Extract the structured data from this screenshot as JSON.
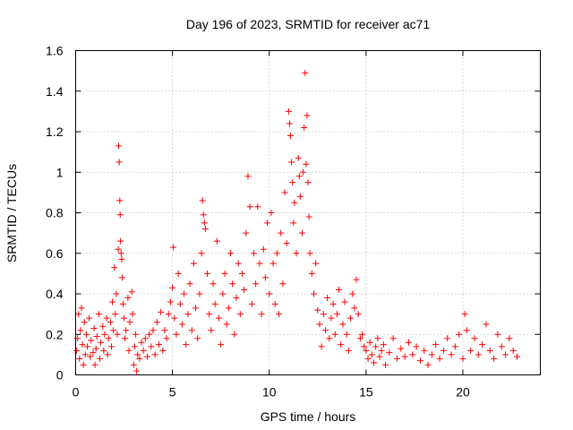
{
  "chart_data": {
    "type": "scatter",
    "title": "Day 196 of 2023, SRMTID for receiver ac71",
    "xlabel": "GPS time / hours",
    "ylabel": "SRMTID / TECUs",
    "xlim": [
      0,
      24
    ],
    "ylim": [
      0,
      1.6
    ],
    "xticks": [
      0,
      5,
      10,
      15,
      20
    ],
    "xtick_labels": [
      "0",
      "5",
      "10",
      "15",
      "20"
    ],
    "yticks": [
      0,
      0.2,
      0.4,
      0.6,
      0.8,
      1.0,
      1.2,
      1.4,
      1.6
    ],
    "ytick_labels": [
      "0",
      "0.2",
      "0.4",
      "0.6",
      "0.8",
      "1",
      "1.2",
      "1.4",
      "1.6"
    ],
    "grid": true,
    "marker": "+",
    "color": "#ff0000",
    "series": [
      {
        "name": "SRMTID",
        "points": [
          [
            0.05,
            0.12
          ],
          [
            0.1,
            0.18
          ],
          [
            0.15,
            0.3
          ],
          [
            0.2,
            0.08
          ],
          [
            0.25,
            0.22
          ],
          [
            0.3,
            0.33
          ],
          [
            0.35,
            0.15
          ],
          [
            0.4,
            0.05
          ],
          [
            0.45,
            0.26
          ],
          [
            0.5,
            0.1
          ],
          [
            0.55,
            0.2
          ],
          [
            0.6,
            0.14
          ],
          [
            0.7,
            0.28
          ],
          [
            0.75,
            0.09
          ],
          [
            0.8,
            0.17
          ],
          [
            0.9,
            0.11
          ],
          [
            0.95,
            0.23
          ],
          [
            1.0,
            0.05
          ],
          [
            1.05,
            0.13
          ],
          [
            1.1,
            0.19
          ],
          [
            1.2,
            0.3
          ],
          [
            1.25,
            0.08
          ],
          [
            1.3,
            0.16
          ],
          [
            1.4,
            0.24
          ],
          [
            1.45,
            0.12
          ],
          [
            1.5,
            0.2
          ],
          [
            1.6,
            0.28
          ],
          [
            1.65,
            0.1
          ],
          [
            1.7,
            0.18
          ],
          [
            1.8,
            0.26
          ],
          [
            1.85,
            0.14
          ],
          [
            1.9,
            0.36
          ],
          [
            1.95,
            0.22
          ],
          [
            2.0,
            0.53
          ],
          [
            2.05,
            0.3
          ],
          [
            2.1,
            0.4
          ],
          [
            2.15,
            0.2
          ],
          [
            2.2,
            0.62
          ],
          [
            2.22,
            1.13
          ],
          [
            2.25,
            1.05
          ],
          [
            2.28,
            0.86
          ],
          [
            2.3,
            0.79
          ],
          [
            2.32,
            0.66
          ],
          [
            2.35,
            0.6
          ],
          [
            2.38,
            0.57
          ],
          [
            2.4,
            0.48
          ],
          [
            2.45,
            0.35
          ],
          [
            2.5,
            0.28
          ],
          [
            2.55,
            0.18
          ],
          [
            2.6,
            0.22
          ],
          [
            2.7,
            0.38
          ],
          [
            2.75,
            0.12
          ],
          [
            2.8,
            0.26
          ],
          [
            2.9,
            0.41
          ],
          [
            2.95,
            0.3
          ],
          [
            3.0,
            0.05
          ],
          [
            3.05,
            0.14
          ],
          [
            3.1,
            0.2
          ],
          [
            3.15,
            0.02
          ],
          [
            3.2,
            0.1
          ],
          [
            3.3,
            0.08
          ],
          [
            3.4,
            0.16
          ],
          [
            3.5,
            0.12
          ],
          [
            3.6,
            0.18
          ],
          [
            3.7,
            0.09
          ],
          [
            3.8,
            0.2
          ],
          [
            3.9,
            0.14
          ],
          [
            4.0,
            0.22
          ],
          [
            4.1,
            0.1
          ],
          [
            4.2,
            0.26
          ],
          [
            4.3,
            0.15
          ],
          [
            4.4,
            0.31
          ],
          [
            4.5,
            0.12
          ],
          [
            4.6,
            0.22
          ],
          [
            4.7,
            0.18
          ],
          [
            4.8,
            0.3
          ],
          [
            4.9,
            0.36
          ],
          [
            5.0,
            0.43
          ],
          [
            5.05,
            0.63
          ],
          [
            5.1,
            0.28
          ],
          [
            5.2,
            0.2
          ],
          [
            5.3,
            0.5
          ],
          [
            5.4,
            0.35
          ],
          [
            5.5,
            0.25
          ],
          [
            5.6,
            0.4
          ],
          [
            5.7,
            0.15
          ],
          [
            5.8,
            0.3
          ],
          [
            5.9,
            0.45
          ],
          [
            6.0,
            0.22
          ],
          [
            6.1,
            0.55
          ],
          [
            6.2,
            0.33
          ],
          [
            6.3,
            0.18
          ],
          [
            6.4,
            0.4
          ],
          [
            6.5,
            0.6
          ],
          [
            6.55,
            0.86
          ],
          [
            6.6,
            0.79
          ],
          [
            6.65,
            0.75
          ],
          [
            6.7,
            0.72
          ],
          [
            6.8,
            0.5
          ],
          [
            6.9,
            0.3
          ],
          [
            7.0,
            0.22
          ],
          [
            7.1,
            0.45
          ],
          [
            7.2,
            0.35
          ],
          [
            7.3,
            0.66
          ],
          [
            7.4,
            0.28
          ],
          [
            7.5,
            0.15
          ],
          [
            7.6,
            0.4
          ],
          [
            7.7,
            0.5
          ],
          [
            7.8,
            0.25
          ],
          [
            7.9,
            0.33
          ],
          [
            8.0,
            0.6
          ],
          [
            8.1,
            0.45
          ],
          [
            8.2,
            0.2
          ],
          [
            8.3,
            0.38
          ],
          [
            8.4,
            0.55
          ],
          [
            8.5,
            0.3
          ],
          [
            8.6,
            0.5
          ],
          [
            8.7,
            0.42
          ],
          [
            8.8,
            0.7
          ],
          [
            8.9,
            0.98
          ],
          [
            9.0,
            0.83
          ],
          [
            9.1,
            0.35
          ],
          [
            9.2,
            0.6
          ],
          [
            9.3,
            0.45
          ],
          [
            9.4,
            0.83
          ],
          [
            9.5,
            0.55
          ],
          [
            9.6,
            0.3
          ],
          [
            9.7,
            0.62
          ],
          [
            9.8,
            0.48
          ],
          [
            9.9,
            0.75
          ],
          [
            10.0,
            0.4
          ],
          [
            10.1,
            0.8
          ],
          [
            10.2,
            0.55
          ],
          [
            10.3,
            0.35
          ],
          [
            10.4,
            0.6
          ],
          [
            10.5,
            0.3
          ],
          [
            10.6,
            0.7
          ],
          [
            10.7,
            0.45
          ],
          [
            10.8,
            0.9
          ],
          [
            10.9,
            0.65
          ],
          [
            11.0,
            1.3
          ],
          [
            11.05,
            1.24
          ],
          [
            11.1,
            1.18
          ],
          [
            11.15,
            1.05
          ],
          [
            11.2,
            0.95
          ],
          [
            11.25,
            0.75
          ],
          [
            11.3,
            0.85
          ],
          [
            11.4,
            0.6
          ],
          [
            11.5,
            1.07
          ],
          [
            11.55,
            0.98
          ],
          [
            11.6,
            0.88
          ],
          [
            11.7,
            0.7
          ],
          [
            11.75,
            1.0
          ],
          [
            11.8,
            1.22
          ],
          [
            11.85,
            1.49
          ],
          [
            11.9,
            1.04
          ],
          [
            11.95,
            1.28
          ],
          [
            12.0,
            0.95
          ],
          [
            12.05,
            0.78
          ],
          [
            12.1,
            0.6
          ],
          [
            12.2,
            0.5
          ],
          [
            12.3,
            0.4
          ],
          [
            12.4,
            0.55
          ],
          [
            12.5,
            0.32
          ],
          [
            12.6,
            0.25
          ],
          [
            12.7,
            0.14
          ],
          [
            12.8,
            0.3
          ],
          [
            12.9,
            0.22
          ],
          [
            13.0,
            0.38
          ],
          [
            13.1,
            0.18
          ],
          [
            13.2,
            0.28
          ],
          [
            13.3,
            0.35
          ],
          [
            13.4,
            0.2
          ],
          [
            13.5,
            0.3
          ],
          [
            13.6,
            0.42
          ],
          [
            13.7,
            0.15
          ],
          [
            13.8,
            0.25
          ],
          [
            13.9,
            0.36
          ],
          [
            14.0,
            0.2
          ],
          [
            14.1,
            0.12
          ],
          [
            14.2,
            0.28
          ],
          [
            14.3,
            0.4
          ],
          [
            14.4,
            0.33
          ],
          [
            14.5,
            0.47
          ],
          [
            14.6,
            0.3
          ],
          [
            14.7,
            0.18
          ],
          [
            14.8,
            0.2
          ],
          [
            14.9,
            0.14
          ],
          [
            15.0,
            0.12
          ],
          [
            15.1,
            0.08
          ],
          [
            15.2,
            0.16
          ],
          [
            15.3,
            0.1
          ],
          [
            15.4,
            0.06
          ],
          [
            15.5,
            0.14
          ],
          [
            15.6,
            0.18
          ],
          [
            15.7,
            0.09
          ],
          [
            15.8,
            0.12
          ],
          [
            15.9,
            0.15
          ],
          [
            16.0,
            0.05
          ],
          [
            16.2,
            0.11
          ],
          [
            16.4,
            0.18
          ],
          [
            16.6,
            0.08
          ],
          [
            16.8,
            0.13
          ],
          [
            17.0,
            0.09
          ],
          [
            17.2,
            0.16
          ],
          [
            17.4,
            0.1
          ],
          [
            17.6,
            0.14
          ],
          [
            17.8,
            0.07
          ],
          [
            18.0,
            0.12
          ],
          [
            18.2,
            0.05
          ],
          [
            18.4,
            0.1
          ],
          [
            18.6,
            0.15
          ],
          [
            18.8,
            0.08
          ],
          [
            19.0,
            0.12
          ],
          [
            19.2,
            0.18
          ],
          [
            19.4,
            0.1
          ],
          [
            19.6,
            0.14
          ],
          [
            19.8,
            0.2
          ],
          [
            20.0,
            0.08
          ],
          [
            20.1,
            0.3
          ],
          [
            20.2,
            0.22
          ],
          [
            20.4,
            0.12
          ],
          [
            20.6,
            0.18
          ],
          [
            20.8,
            0.1
          ],
          [
            21.0,
            0.15
          ],
          [
            21.2,
            0.25
          ],
          [
            21.4,
            0.12
          ],
          [
            21.6,
            0.08
          ],
          [
            21.8,
            0.2
          ],
          [
            22.0,
            0.14
          ],
          [
            22.2,
            0.1
          ],
          [
            22.4,
            0.18
          ],
          [
            22.6,
            0.12
          ],
          [
            22.8,
            0.09
          ]
        ]
      }
    ]
  }
}
